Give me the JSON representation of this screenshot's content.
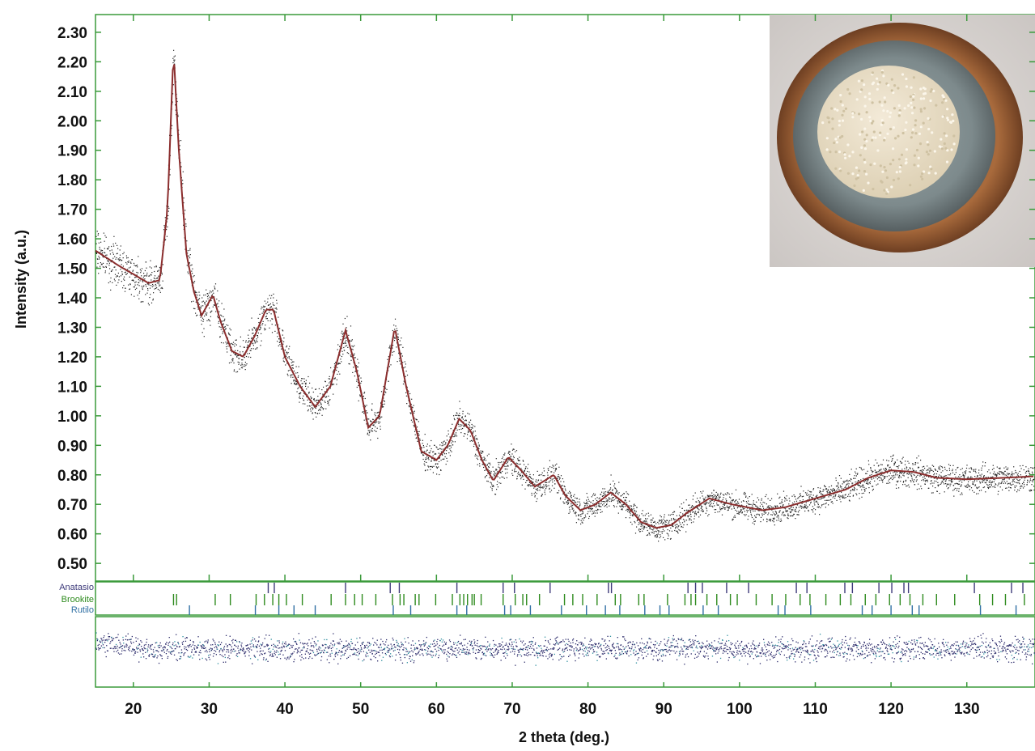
{
  "chart_data": {
    "type": "scatter",
    "title": "",
    "xlabel": "2 theta (deg.)",
    "ylabel": "Intensity (a.u.)",
    "xlim": [
      15,
      139
    ],
    "ylim": [
      0.44,
      2.36
    ],
    "x_ticks": [
      20,
      30,
      40,
      50,
      60,
      70,
      80,
      90,
      100,
      110,
      120,
      130
    ],
    "y_ticks": [
      0.5,
      0.6,
      0.7,
      0.8,
      0.9,
      1.0,
      1.1,
      1.2,
      1.3,
      1.4,
      1.5,
      1.6,
      1.7,
      1.8,
      1.9,
      2.0,
      2.1,
      2.2,
      2.3
    ],
    "grid": false,
    "fit_curve": {
      "color": "#8b2d2d",
      "points": [
        [
          15,
          1.56
        ],
        [
          18,
          1.51
        ],
        [
          20,
          1.48
        ],
        [
          22,
          1.45
        ],
        [
          23.5,
          1.46
        ],
        [
          24.5,
          1.7
        ],
        [
          25.3,
          2.24
        ],
        [
          26,
          1.9
        ],
        [
          27,
          1.55
        ],
        [
          28,
          1.42
        ],
        [
          29,
          1.34
        ],
        [
          30.5,
          1.41
        ],
        [
          31.5,
          1.32
        ],
        [
          33,
          1.22
        ],
        [
          34.5,
          1.2
        ],
        [
          36,
          1.27
        ],
        [
          37.5,
          1.36
        ],
        [
          38.5,
          1.36
        ],
        [
          40,
          1.2
        ],
        [
          42,
          1.1
        ],
        [
          44,
          1.03
        ],
        [
          46,
          1.1
        ],
        [
          48,
          1.29
        ],
        [
          49.5,
          1.15
        ],
        [
          51,
          0.96
        ],
        [
          52.5,
          1.0
        ],
        [
          54.5,
          1.3
        ],
        [
          56,
          1.1
        ],
        [
          58,
          0.88
        ],
        [
          60,
          0.85
        ],
        [
          61.5,
          0.9
        ],
        [
          63,
          0.99
        ],
        [
          64.5,
          0.95
        ],
        [
          66,
          0.85
        ],
        [
          67.5,
          0.78
        ],
        [
          69.5,
          0.86
        ],
        [
          71,
          0.82
        ],
        [
          73,
          0.76
        ],
        [
          75.5,
          0.8
        ],
        [
          77,
          0.73
        ],
        [
          79,
          0.68
        ],
        [
          81,
          0.7
        ],
        [
          83,
          0.74
        ],
        [
          85,
          0.7
        ],
        [
          87,
          0.64
        ],
        [
          89,
          0.62
        ],
        [
          91,
          0.63
        ],
        [
          93,
          0.67
        ],
        [
          96,
          0.72
        ],
        [
          99,
          0.7
        ],
        [
          103,
          0.68
        ],
        [
          106,
          0.69
        ],
        [
          110,
          0.72
        ],
        [
          114,
          0.75
        ],
        [
          117,
          0.79
        ],
        [
          120,
          0.815
        ],
        [
          123,
          0.81
        ],
        [
          126,
          0.79
        ],
        [
          130,
          0.785
        ],
        [
          135,
          0.79
        ],
        [
          139,
          0.795
        ]
      ]
    },
    "series": [
      {
        "name": "Anatasio",
        "color": "#3d3a7a",
        "reflections": [
          37.8,
          38.6,
          48.0,
          53.9,
          55.1,
          62.7,
          68.8,
          70.3,
          75.0,
          82.7,
          83.1,
          93.2,
          94.2,
          95.1,
          98.3,
          101.2,
          107.5,
          108.9,
          113.9,
          114.9,
          118.4,
          120.1,
          121.7,
          122.3,
          131.0,
          135.9,
          137.4
        ]
      },
      {
        "name": "Brookite",
        "color": "#2e8b1e"
      },
      {
        "name": "Rutilo",
        "color": "#2f6fa3",
        "reflections": [
          27.4,
          36.1,
          39.2,
          41.2,
          44.0,
          54.3,
          56.6,
          62.7,
          64.0,
          69.0,
          69.8,
          72.4,
          76.5,
          79.8,
          82.3,
          84.2,
          87.5,
          89.5,
          90.7,
          95.2,
          97.2,
          105.1,
          106.0,
          109.4,
          116.2,
          117.5,
          120.0,
          122.8,
          123.7,
          131.8,
          136.5
        ]
      }
    ],
    "brookite_reflections": [
      25.3,
      25.7,
      30.8,
      32.8,
      36.2,
      37.3,
      38.4,
      39.2,
      40.2,
      42.3,
      46.1,
      48.0,
      49.2,
      50.2,
      52.0,
      54.2,
      55.2,
      55.7,
      57.2,
      57.7,
      59.9,
      62.1,
      63.1,
      63.6,
      64.1,
      64.7,
      65.0,
      65.9,
      68.8,
      70.4,
      71.4,
      71.9,
      73.6,
      76.9,
      78.0,
      79.3,
      81.2,
      83.6,
      84.3,
      86.7,
      87.4,
      90.5,
      92.8,
      93.6,
      94.2,
      95.7,
      97.0,
      98.8,
      99.7,
      102.2,
      104.3,
      106.1,
      108.0,
      109.3,
      111.4,
      113.3,
      114.7,
      116.6,
      118.0,
      119.8,
      121.2,
      122.5,
      124.2,
      126.0,
      128.4,
      131.7,
      133.4,
      135.1,
      137.6
    ],
    "inset_photo": "photograph of white powder sample in a ceramic crucible"
  }
}
